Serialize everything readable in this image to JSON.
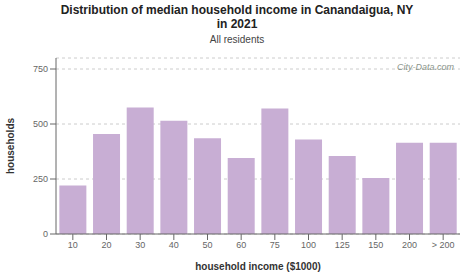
{
  "chart_data": {
    "type": "bar",
    "title": "Distribution of median household income in Canandaigua, NY\nin 2021",
    "subtitle": "All residents",
    "xlabel": "household income ($1000)",
    "ylabel": "households",
    "categories": [
      "10",
      "20",
      "30",
      "40",
      "50",
      "60",
      "75",
      "100",
      "125",
      "150",
      "200",
      "> 200"
    ],
    "values": [
      220,
      455,
      575,
      515,
      435,
      345,
      570,
      430,
      355,
      255,
      415,
      415
    ],
    "color": "#c8aed4",
    "ylim": [
      0,
      800
    ],
    "yticks": [
      0,
      250,
      500,
      750
    ],
    "grid": true,
    "annotations": [
      "City-Data.com"
    ]
  }
}
